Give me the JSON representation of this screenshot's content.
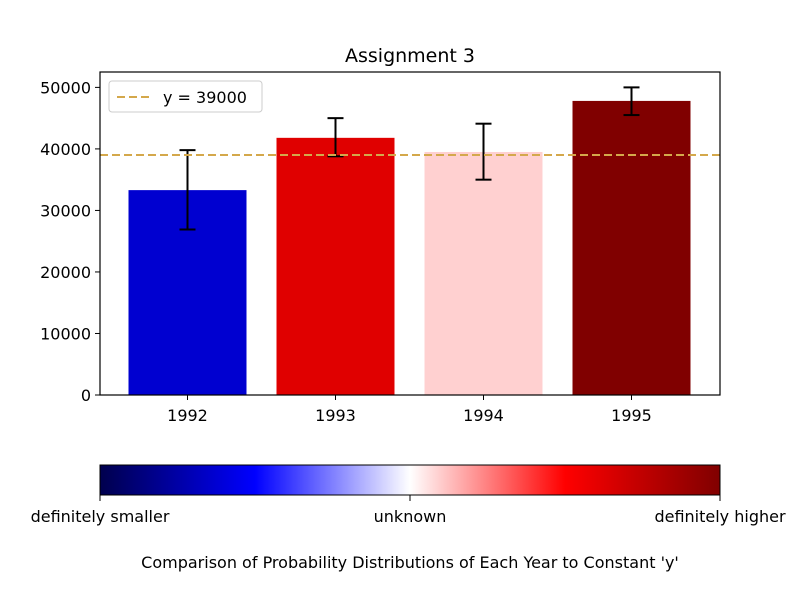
{
  "chart_data": {
    "type": "bar",
    "title": "Assignment 3",
    "xlabel": "",
    "ylabel": "",
    "categories": [
      "1992",
      "1993",
      "1994",
      "1995"
    ],
    "values": [
      33300,
      41800,
      39500,
      47800
    ],
    "error_lower": [
      6400,
      3000,
      4500,
      2300
    ],
    "error_upper": [
      6500,
      3200,
      4600,
      2200
    ],
    "bar_colors": [
      "#0000d0",
      "#e00000",
      "#ffd0d0",
      "#800000"
    ],
    "ylim": [
      0,
      52500
    ],
    "yticks": [
      0,
      10000,
      20000,
      30000,
      40000,
      50000
    ],
    "grid": false,
    "reference_line": {
      "label": "y = 39000",
      "value": 39000,
      "color": "#d4a84b",
      "style": "dashed"
    },
    "legend": {
      "placement": "top-left",
      "entries": [
        "y = 39000"
      ]
    },
    "colorbar": {
      "colors": [
        "#00004d",
        "#0000ff",
        "#ffffff",
        "#ff0000",
        "#800000"
      ],
      "labels": [
        "definitely smaller",
        "unknown",
        "definitely higher"
      ],
      "caption": "Comparison of Probability Distributions of Each Year to Constant 'y'"
    }
  }
}
